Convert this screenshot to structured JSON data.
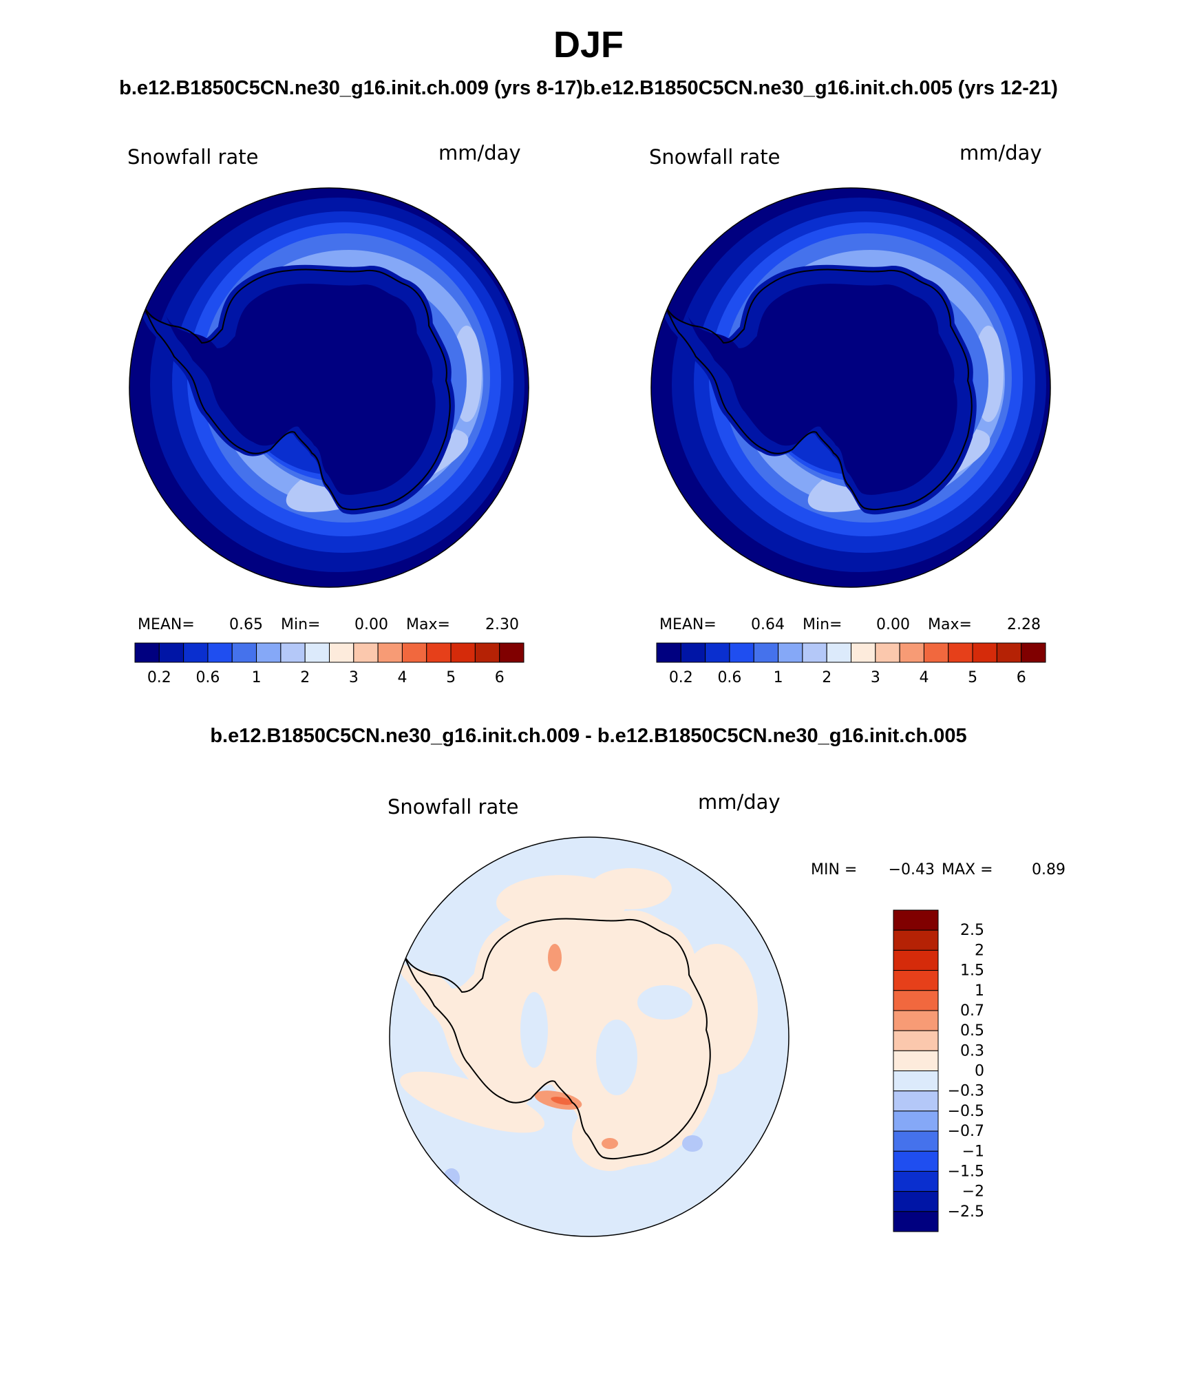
{
  "page": {
    "season": "DJF",
    "run_title_left": "b.e12.B1850C5CN.ne30_g16.init.ch.009 (yrs 8-17)",
    "run_title_right": "b.e12.B1850C5CN.ne30_g16.init.ch.005 (yrs 12-21)",
    "diff_title": "b.e12.B1850C5CN.ne30_g16.init.ch.009 - b.e12.B1850C5CN.ne30_g16.init.ch.005"
  },
  "colors": {
    "seq": [
      "#000080",
      "#0015a6",
      "#0a2fcf",
      "#1f4ef0",
      "#4572ec",
      "#85a8f7",
      "#b4c8f8",
      "#dceafb",
      "#fdebdc",
      "#fbc8ad",
      "#f79b75",
      "#f1683e",
      "#e6401a",
      "#d52b0a",
      "#b52205",
      "#800000"
    ],
    "coast": "#000000"
  },
  "chart_data": [
    {
      "type": "heatmap",
      "projection": "south-polar-stereographic",
      "title": "Snowfall rate",
      "units": "mm/day",
      "stats": {
        "mean_label": "MEAN=",
        "mean": "0.65",
        "min_label": "Min=",
        "min": "0.00",
        "max_label": "Max=",
        "max": "2.30"
      },
      "levels": [
        0.2,
        0.4,
        0.6,
        0.8,
        1,
        1.5,
        2,
        2.5,
        3,
        3.5,
        4,
        4.5,
        5,
        5.5,
        6
      ],
      "colorbar_ticks": [
        "0.2",
        "0.6",
        "1",
        "2",
        "3",
        "4",
        "5",
        "6"
      ],
      "colorbar_orientation": "horizontal"
    },
    {
      "type": "heatmap",
      "projection": "south-polar-stereographic",
      "title": "Snowfall rate",
      "units": "mm/day",
      "stats": {
        "mean_label": "MEAN=",
        "mean": "0.64",
        "min_label": "Min=",
        "min": "0.00",
        "max_label": "Max=",
        "max": "2.28"
      },
      "levels": [
        0.2,
        0.4,
        0.6,
        0.8,
        1,
        1.5,
        2,
        2.5,
        3,
        3.5,
        4,
        4.5,
        5,
        5.5,
        6
      ],
      "colorbar_ticks": [
        "0.2",
        "0.6",
        "1",
        "2",
        "3",
        "4",
        "5",
        "6"
      ],
      "colorbar_orientation": "horizontal"
    },
    {
      "type": "heatmap",
      "projection": "south-polar-stereographic",
      "title": "Snowfall rate",
      "units": "mm/day",
      "stats": {
        "min_label": "MIN =",
        "min": "−0.43",
        "max_label": "MAX =",
        "max": "0.89"
      },
      "levels": [
        -2.5,
        -2,
        -1.5,
        -1,
        -0.7,
        -0.5,
        -0.3,
        0,
        0.3,
        0.5,
        0.7,
        1,
        1.5,
        2,
        2.5
      ],
      "colorbar_ticks": [
        "2.5",
        "2",
        "1.5",
        "1",
        "0.7",
        "0.5",
        "0.3",
        "0",
        "−0.3",
        "−0.5",
        "−0.7",
        "−1",
        "−1.5",
        "−2",
        "−2.5"
      ],
      "colorbar_orientation": "vertical"
    }
  ]
}
